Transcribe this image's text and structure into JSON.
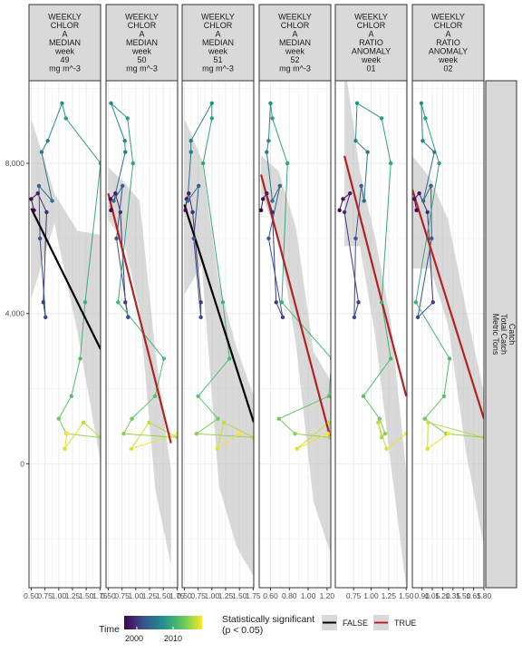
{
  "chart_data": {
    "type": "scatter",
    "description_of_axes": "facets share y axis; each facet has its own x scale",
    "y_axis": {
      "label": "",
      "ticks": [
        0,
        4000,
        8000
      ],
      "tick_labels": [
        "0",
        "4,000",
        "8,000"
      ],
      "ylim": [
        -3300,
        10200
      ]
    },
    "right_strip": [
      "Catch",
      "Total Catch",
      "Metric Tons"
    ],
    "catch": [
      6750,
      7050,
      7200,
      6700,
      4300,
      3900,
      6000,
      7400,
      7000,
      8300,
      8600,
      9600,
      9200,
      8000,
      4300,
      2800,
      1800,
      1200,
      800,
      700,
      1100,
      400,
      800
    ],
    "years": [
      1998,
      1999,
      2000,
      2001,
      2002,
      2003,
      2004,
      2005,
      2006,
      2007,
      2008,
      2009,
      2010,
      2011,
      2012,
      2013,
      2014,
      2015,
      2016,
      2017,
      2018,
      2019,
      2020
    ],
    "facets": [
      {
        "strip": [
          "WEEKLY",
          "CHLOR",
          "A",
          "MEDIAN",
          "week",
          "49",
          "mg m^-3"
        ],
        "xlim": [
          0.46,
          1.76
        ],
        "xticks": [
          0.5,
          0.75,
          1.0,
          1.25,
          1.5,
          1.75
        ],
        "xtick_labels": [
          "0.50",
          "0.75",
          "1.00",
          "1.25",
          "1.50",
          "1.75"
        ],
        "x": [
          0.55,
          0.5,
          0.62,
          0.78,
          0.72,
          0.76,
          0.66,
          0.64,
          0.88,
          0.69,
          0.8,
          1.06,
          1.13,
          1.76,
          1.48,
          1.39,
          1.23,
          1.0,
          1.14,
          1.76,
          1.45,
          1.11,
          1.15
        ],
        "significant": false,
        "trend": {
          "x0": 0.5,
          "y0": 6800,
          "x1": 1.76,
          "y1": 3050
        },
        "ribbon_upper": [
          9200,
          7200,
          6200,
          6100
        ],
        "ribbon_lower": [
          4400,
          6400,
          3500,
          40
        ]
      },
      {
        "strip": [
          "WEEKLY",
          "CHLOR",
          "A",
          "MEDIAN",
          "week",
          "50",
          "mg m^-3"
        ],
        "xlim": [
          0.46,
          1.76
        ],
        "xticks": [
          0.5,
          0.75,
          1.0,
          1.25,
          1.5,
          1.75
        ],
        "xtick_labels": [
          "0.50",
          "0.75",
          "1.00",
          "1.25",
          "1.50",
          "1.75"
        ],
        "x": [
          0.55,
          0.54,
          0.63,
          0.72,
          0.81,
          0.86,
          0.65,
          0.76,
          0.6,
          0.81,
          0.8,
          0.55,
          0.85,
          0.95,
          0.68,
          1.51,
          1.35,
          0.93,
          0.78,
          1.76,
          1.24,
          0.92,
          1.76
        ],
        "significant": true,
        "trend": {
          "x0": 0.5,
          "y0": 7200,
          "x1": 1.64,
          "y1": 550
        },
        "ribbon_upper": [
          7900,
          7500,
          7000,
          3000,
          -200
        ],
        "ribbon_lower": [
          6500,
          5900,
          4100,
          -700,
          -2700
        ]
      },
      {
        "strip": [
          "WEEKLY",
          "CHLOR",
          "A",
          "MEDIAN",
          "week",
          "51",
          "mg m^-3"
        ],
        "xlim": [
          0.46,
          1.76
        ],
        "xticks": [
          0.5,
          0.75,
          1.0,
          1.25,
          1.5,
          1.75
        ],
        "xtick_labels": [
          "0.50",
          "0.75",
          "1.00",
          "1.25",
          "1.50",
          "1.75"
        ],
        "x": [
          0.52,
          0.54,
          0.58,
          0.65,
          0.8,
          0.8,
          0.67,
          0.76,
          0.56,
          0.62,
          0.62,
          1.0,
          1.0,
          0.84,
          1.2,
          1.32,
          0.75,
          1.11,
          0.72,
          1.76,
          1.22,
          1.1,
          1.5
        ],
        "significant": false,
        "trend": {
          "x0": 0.5,
          "y0": 6900,
          "x1": 1.76,
          "y1": 1100
        },
        "ribbon_upper": [
          9200,
          8100,
          4800,
          3100,
          1800
        ],
        "ribbon_lower": [
          4500,
          5300,
          -600,
          -2200,
          -3000
        ]
      },
      {
        "strip": [
          "WEEKLY",
          "CHLOR",
          "A",
          "MEDIAN",
          "week",
          "52",
          "mg m^-3"
        ],
        "xlim": [
          0.48,
          1.24
        ],
        "xticks": [
          0.6,
          0.8,
          1.0,
          1.2
        ],
        "xtick_labels": [
          "0.60",
          "0.80",
          "1.00",
          "1.20"
        ],
        "x": [
          0.5,
          0.52,
          0.56,
          0.62,
          0.66,
          0.73,
          0.58,
          0.7,
          0.62,
          0.56,
          0.58,
          0.6,
          0.62,
          0.78,
          0.72,
          1.25,
          1.22,
          0.69,
          0.86,
          1.23,
          1.22,
          0.88,
          1.21
        ],
        "significant": true,
        "trend": {
          "x0": 0.5,
          "y0": 7700,
          "x1": 1.24,
          "y1": 650
        },
        "ribbon_upper": [
          8200,
          7800,
          6300,
          3000,
          2200
        ],
        "ribbon_lower": [
          7200,
          6000,
          3200,
          -1000,
          -2400
        ]
      },
      {
        "strip": [
          "WEEKLY",
          "CHLOR",
          "A",
          "RATIO",
          "ANOMALY",
          "week",
          "01"
        ],
        "xlim": [
          0.49,
          1.51
        ],
        "xticks": [
          0.75,
          1.0,
          1.25,
          1.5
        ],
        "xtick_labels": [
          "0.75",
          "1.00",
          "1.25",
          "1.50"
        ],
        "x": [
          0.55,
          0.6,
          0.7,
          0.62,
          0.82,
          0.76,
          0.78,
          0.86,
          0.9,
          0.95,
          0.78,
          0.8,
          1.15,
          1.28,
          1.15,
          1.28,
          0.89,
          1.12,
          1.2,
          1.15,
          1.1,
          1.22,
          1.5
        ],
        "significant": true,
        "trend": {
          "x0": 0.62,
          "y0": 8200,
          "x1": 1.5,
          "y1": 1800
        },
        "ribbon_upper": [
          10700,
          7800,
          6000,
          3800,
          -200
        ],
        "ribbon_lower": [
          5800,
          5800,
          3400,
          0,
          -3300
        ]
      },
      {
        "strip": [
          "WEEKLY",
          "CHLOR",
          "A",
          "RATIO",
          "ANOMALY",
          "week",
          "02"
        ],
        "xlim": [
          0.76,
          1.8
        ],
        "xticks": [
          0.9,
          1.05,
          1.2,
          1.35,
          1.5,
          1.65,
          1.8
        ],
        "xtick_labels": [
          "0.90",
          "1.05",
          "1.20",
          "1.35",
          "1.50",
          "1.65",
          "1.80"
        ],
        "x": [
          0.82,
          0.79,
          0.86,
          0.98,
          1.06,
          0.84,
          1.04,
          1.03,
          0.92,
          1.08,
          0.91,
          0.89,
          0.95,
          1.15,
          0.81,
          1.3,
          1.22,
          0.94,
          1.25,
          1.8,
          0.99,
          0.98,
          1.28
        ],
        "significant": true,
        "trend": {
          "x0": 0.76,
          "y0": 7300,
          "x1": 1.8,
          "y1": 1200
        },
        "ribbon_upper": [
          8200,
          7600,
          6500,
          4100,
          1900
        ],
        "ribbon_lower": [
          5200,
          5200,
          3700,
          300,
          -2200
        ]
      }
    ],
    "legend": {
      "time_title": "Time",
      "time_ticks": [
        "2000",
        "2010"
      ],
      "sig_title_line1": "Statistically significant",
      "sig_title_line2": "(p < 0.05)",
      "sig_labels": [
        "FALSE",
        "TRUE"
      ]
    },
    "colors": {
      "panel_border": "#333333",
      "strip_fill": "#d9d9d9",
      "grid": "#ebebeb",
      "ribbon": "#bfbfbf",
      "trend_false": "#000000",
      "trend_true": "#b22222",
      "time_gradient": [
        "#440154",
        "#3b528b",
        "#21908c",
        "#5dc863",
        "#fde725"
      ]
    }
  }
}
